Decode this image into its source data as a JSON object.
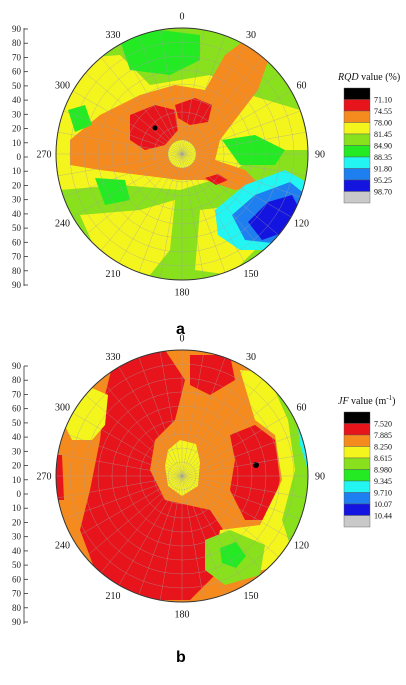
{
  "chart_data": [
    {
      "type": "polar contour (stereonet)",
      "panel_label": "a",
      "legend": {
        "title_italic": "RQD",
        "title_rest": " value (%)",
        "levels": [
          "71.10",
          "74.55",
          "78.00",
          "81.45",
          "84.90",
          "88.35",
          "91.80",
          "95.25",
          "98.70"
        ],
        "colors": [
          "#000000",
          "#e8141b",
          "#f58a1f",
          "#f5f51e",
          "#89e01d",
          "#24ea23",
          "#22f5f2",
          "#1e7ff0",
          "#1414e0",
          "#c9c9c9"
        ]
      },
      "angular_labels": [
        "0",
        "30",
        "60",
        "90",
        "120",
        "150",
        "180",
        "210",
        "240",
        "270",
        "300",
        "330"
      ],
      "dip_axis_ticks": [
        "90",
        "80",
        "70",
        "60",
        "50",
        "40",
        "30",
        "20",
        "10",
        "0",
        "10",
        "20",
        "30",
        "40",
        "50",
        "60",
        "70",
        "80",
        "90"
      ]
    },
    {
      "type": "polar contour (stereonet)",
      "panel_label": "b",
      "legend": {
        "title_italic": "JF",
        "title_rest": " value (m",
        "title_sup": "-1",
        "title_end": ")",
        "levels": [
          "7.520",
          "7.885",
          "8.250",
          "8.615",
          "8.980",
          "9.345",
          "9.710",
          "10.07",
          "10.44"
        ],
        "colors": [
          "#000000",
          "#e8141b",
          "#f58a1f",
          "#f5f51e",
          "#89e01d",
          "#24ea23",
          "#22f5f2",
          "#1e7ff0",
          "#1414e0",
          "#c9c9c9"
        ]
      },
      "angular_labels": [
        "0",
        "30",
        "60",
        "90",
        "120",
        "150",
        "180",
        "210",
        "240",
        "270",
        "300",
        "330"
      ],
      "dip_axis_ticks": [
        "90",
        "80",
        "70",
        "60",
        "50",
        "40",
        "30",
        "20",
        "10",
        "0",
        "10",
        "20",
        "30",
        "40",
        "50",
        "60",
        "70",
        "80",
        "90"
      ]
    }
  ]
}
